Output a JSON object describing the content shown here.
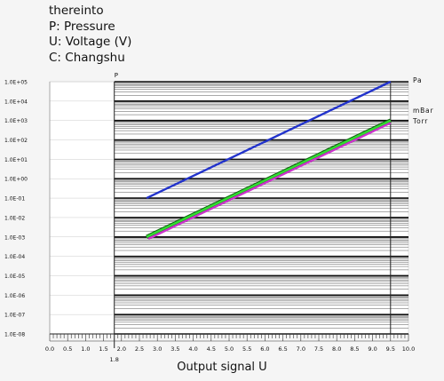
{
  "legend_lines": [
    "thereinto",
    "P: Pressure",
    "U: Voltage (V)",
    "C: Changshu"
  ],
  "chart_data": {
    "type": "line",
    "title": "",
    "xlabel": "Output signal U",
    "ylabel": "P",
    "y_scale": "log",
    "xlim": [
      0.0,
      10.0
    ],
    "ylim": [
      1e-08,
      100000.0
    ],
    "x_ticks": [
      "0.0",
      "0.5",
      "1.0",
      "1.5",
      "2.0",
      "2.5",
      "3.0",
      "3.5",
      "4.0",
      "4.5",
      "5.0",
      "5.5",
      "6.0",
      "6.5",
      "7.0",
      "7.5",
      "8.0",
      "8.5",
      "9.0",
      "9.5",
      "10.0"
    ],
    "x_extra_tick": "1.8",
    "y_ticks": [
      "1.0E+05",
      "1.0E+04",
      "1.0E+03",
      "1.0E+02",
      "1.0E+01",
      "1.0E+00",
      "1.0E-01",
      "1.0E-02",
      "1.0E-03",
      "1.0E-04",
      "1.0E-05",
      "1.0E-06",
      "1.0E-07",
      "1.0E-08"
    ],
    "grid": true,
    "series": [
      {
        "name": "Pa",
        "color": "#2233cc",
        "points": [
          [
            2.7,
            0.1
          ],
          [
            9.5,
            100000.0
          ]
        ]
      },
      {
        "name": "mBar",
        "color": "#33dd33",
        "points": [
          [
            2.7,
            0.001
          ],
          [
            9.5,
            1000
          ]
        ]
      },
      {
        "name": "Torr",
        "color": "#cc33cc",
        "points": [
          [
            2.75,
            0.0008
          ],
          [
            9.5,
            750
          ]
        ]
      }
    ]
  }
}
